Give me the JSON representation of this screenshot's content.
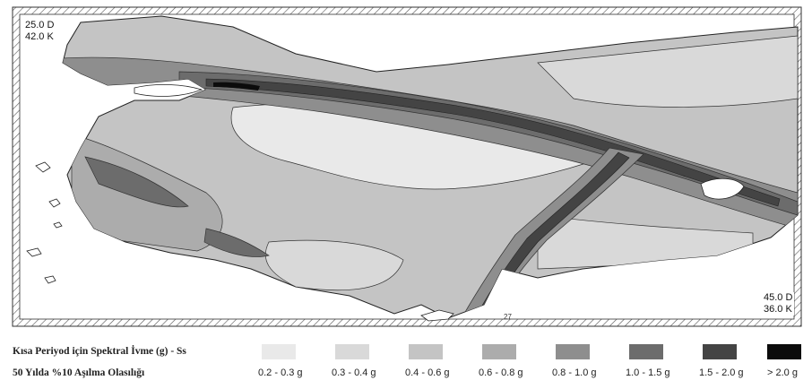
{
  "map": {
    "corner_top_left": [
      "25.0 D",
      "42.0 K"
    ],
    "corner_bottom_right": [
      "45.0 D",
      "36.0 K"
    ],
    "tiny_label": "27"
  },
  "legend": {
    "title_line1": "Kısa Periyod için Spektral İvme (g) - Ss",
    "title_line2": "50 Yılda %10 Aşılma Olasılığı",
    "ranges": [
      {
        "label": "0.2 - 0.3 g",
        "color": "#e9e9e9"
      },
      {
        "label": "0.3 - 0.4 g",
        "color": "#d9d9d9"
      },
      {
        "label": "0.4 - 0.6 g",
        "color": "#c4c4c4"
      },
      {
        "label": "0.6 - 0.8 g",
        "color": "#acacac"
      },
      {
        "label": "0.8 - 1.0 g",
        "color": "#8e8e8e"
      },
      {
        "label": "1.0 - 1.5 g",
        "color": "#6c6c6c"
      },
      {
        "label": "1.5 - 2.0 g",
        "color": "#444444"
      },
      {
        "label": "> 2.0 g",
        "color": "#0c0c0c"
      }
    ]
  }
}
